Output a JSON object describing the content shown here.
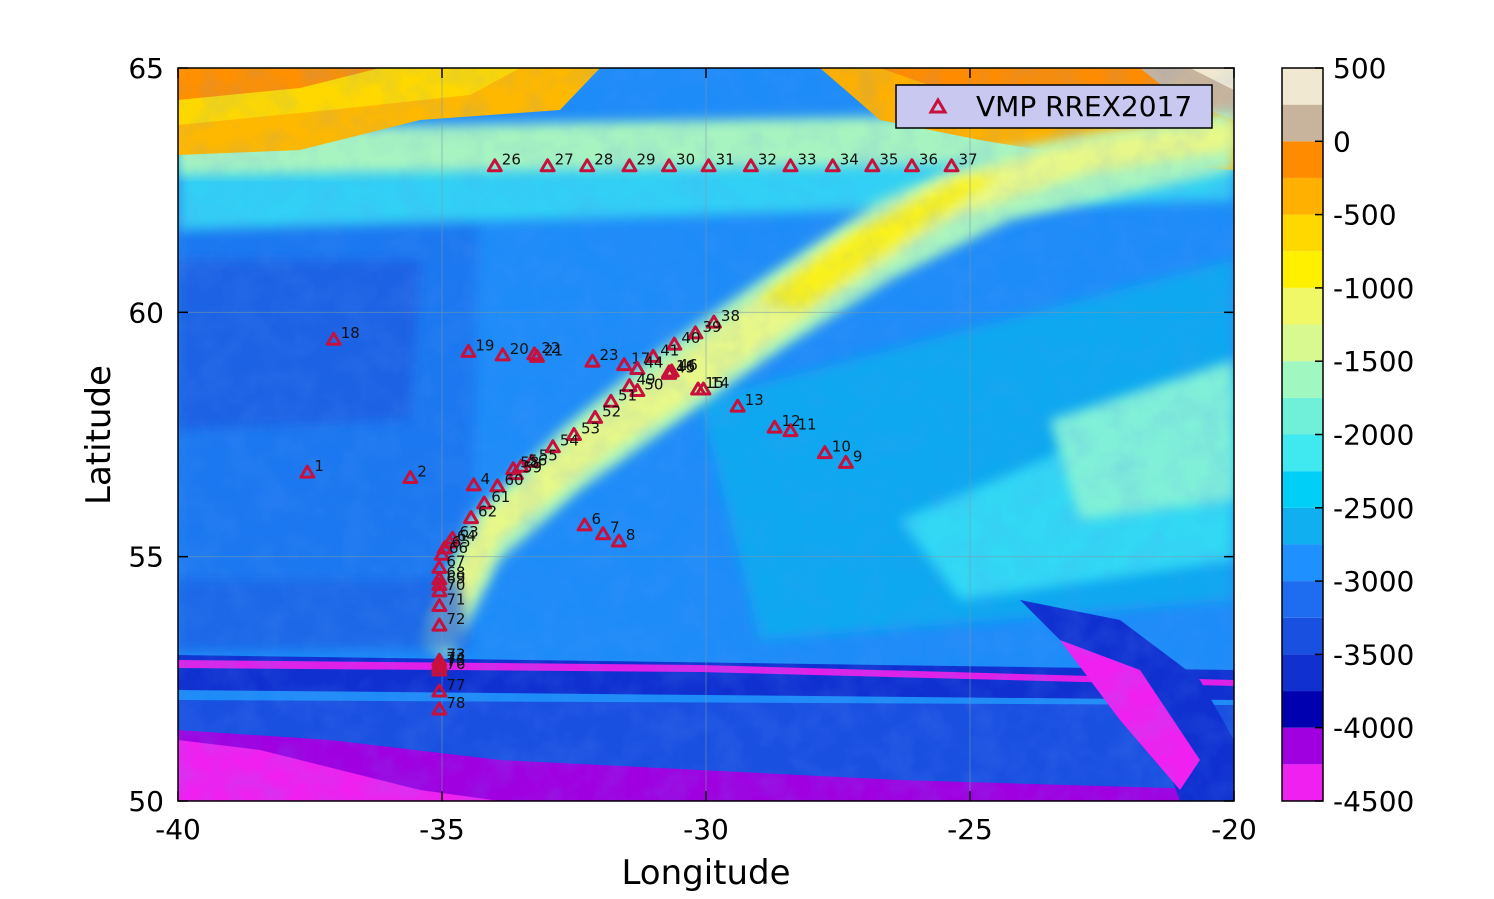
{
  "figure": {
    "xlabel": "Longitude",
    "ylabel": "Latitude",
    "xlim": [
      -40,
      -20
    ],
    "ylim": [
      50,
      65
    ],
    "x_ticks": [
      "-40",
      "-35",
      "-30",
      "-25",
      "-20"
    ],
    "y_ticks": [
      "50",
      "55",
      "60",
      "65"
    ],
    "grid": true,
    "legend": {
      "label": "VMP RREX2017",
      "placement": "top-right",
      "marker_color": "#c8103c"
    }
  },
  "colorbar": {
    "tick_labels": [
      "500",
      "0",
      "-500",
      "-1000",
      "-1500",
      "-2000",
      "-2500",
      "-3000",
      "-3500",
      "-4000",
      "-4500"
    ],
    "range": [
      -4500,
      500
    ],
    "bands": [
      {
        "from": -4500,
        "to": -4250,
        "color": "#f020f0"
      },
      {
        "from": -4250,
        "to": -4000,
        "color": "#a000e0"
      },
      {
        "from": -4000,
        "to": -3750,
        "color": "#0000b0"
      },
      {
        "from": -3750,
        "to": -3500,
        "color": "#1030d0"
      },
      {
        "from": -3500,
        "to": -3250,
        "color": "#1a50e0"
      },
      {
        "from": -3250,
        "to": -3000,
        "color": "#1e6cf0"
      },
      {
        "from": -3000,
        "to": -2750,
        "color": "#1e90ff"
      },
      {
        "from": -2750,
        "to": -2500,
        "color": "#10b0f0"
      },
      {
        "from": -2500,
        "to": -2250,
        "color": "#00d0f8"
      },
      {
        "from": -2250,
        "to": -2000,
        "color": "#40e8f0"
      },
      {
        "from": -2000,
        "to": -1750,
        "color": "#70f0d8"
      },
      {
        "from": -1750,
        "to": -1500,
        "color": "#a0f8c0"
      },
      {
        "from": -1500,
        "to": -1250,
        "color": "#d8f890"
      },
      {
        "from": -1250,
        "to": -1000,
        "color": "#f0f868"
      },
      {
        "from": -1000,
        "to": -750,
        "color": "#fff000"
      },
      {
        "from": -750,
        "to": -500,
        "color": "#ffd800"
      },
      {
        "from": -500,
        "to": -250,
        "color": "#ffb000"
      },
      {
        "from": -250,
        "to": 0,
        "color": "#ff8c00"
      },
      {
        "from": 0,
        "to": 250,
        "color": "#c8b49c"
      },
      {
        "from": 250,
        "to": 500,
        "color": "#f0e8d0"
      }
    ]
  },
  "chart_data": {
    "type": "scatter",
    "title": "",
    "xlabel": "Longitude",
    "ylabel": "Latitude",
    "xlim": [
      -40,
      -20
    ],
    "ylim": [
      50,
      65
    ],
    "series": [
      {
        "name": "VMP RREX2017",
        "marker": "triangle",
        "points": [
          {
            "id": "1",
            "lon": -37.55,
            "lat": 56.73
          },
          {
            "id": "2",
            "lon": -35.6,
            "lat": 56.62
          },
          {
            "id": "4",
            "lon": -34.4,
            "lat": 56.47
          },
          {
            "id": "6",
            "lon": -32.3,
            "lat": 55.65
          },
          {
            "id": "7",
            "lon": -31.95,
            "lat": 55.47
          },
          {
            "id": "8",
            "lon": -31.65,
            "lat": 55.32
          },
          {
            "id": "9",
            "lon": -27.35,
            "lat": 56.93
          },
          {
            "id": "10",
            "lon": -27.75,
            "lat": 57.13
          },
          {
            "id": "11",
            "lon": -28.4,
            "lat": 57.58
          },
          {
            "id": "12",
            "lon": -28.7,
            "lat": 57.65
          },
          {
            "id": "13",
            "lon": -29.4,
            "lat": 58.08
          },
          {
            "id": "14",
            "lon": -30.05,
            "lat": 58.43
          },
          {
            "id": "15",
            "lon": -30.15,
            "lat": 58.43
          },
          {
            "id": "16",
            "lon": -30.7,
            "lat": 58.78
          },
          {
            "id": "17",
            "lon": -31.55,
            "lat": 58.93
          },
          {
            "id": "18",
            "lon": -37.05,
            "lat": 59.45
          },
          {
            "id": "19",
            "lon": -34.5,
            "lat": 59.2
          },
          {
            "id": "20",
            "lon": -33.85,
            "lat": 59.13
          },
          {
            "id": "21",
            "lon": -33.2,
            "lat": 59.1
          },
          {
            "id": "22",
            "lon": -33.25,
            "lat": 59.15
          },
          {
            "id": "23",
            "lon": -32.15,
            "lat": 59.0
          },
          {
            "id": "26",
            "lon": -34.0,
            "lat": 63.0
          },
          {
            "id": "27",
            "lon": -33.0,
            "lat": 63.0
          },
          {
            "id": "28",
            "lon": -32.25,
            "lat": 63.0
          },
          {
            "id": "29",
            "lon": -31.45,
            "lat": 63.0
          },
          {
            "id": "30",
            "lon": -30.7,
            "lat": 63.0
          },
          {
            "id": "31",
            "lon": -29.95,
            "lat": 63.0
          },
          {
            "id": "32",
            "lon": -29.15,
            "lat": 63.0
          },
          {
            "id": "33",
            "lon": -28.4,
            "lat": 63.0
          },
          {
            "id": "34",
            "lon": -27.6,
            "lat": 63.0
          },
          {
            "id": "35",
            "lon": -26.85,
            "lat": 63.0
          },
          {
            "id": "36",
            "lon": -26.1,
            "lat": 63.0
          },
          {
            "id": "37",
            "lon": -25.35,
            "lat": 63.0
          },
          {
            "id": "38",
            "lon": -29.85,
            "lat": 59.8
          },
          {
            "id": "39",
            "lon": -30.2,
            "lat": 59.58
          },
          {
            "id": "40",
            "lon": -30.6,
            "lat": 59.35
          },
          {
            "id": "41",
            "lon": -31.0,
            "lat": 59.1
          },
          {
            "id": "44",
            "lon": -31.3,
            "lat": 58.85
          },
          {
            "id": "45",
            "lon": -30.7,
            "lat": 58.75
          },
          {
            "id": "46",
            "lon": -30.65,
            "lat": 58.8
          },
          {
            "id": "49",
            "lon": -31.45,
            "lat": 58.5
          },
          {
            "id": "50",
            "lon": -31.3,
            "lat": 58.4
          },
          {
            "id": "51",
            "lon": -31.8,
            "lat": 58.18
          },
          {
            "id": "52",
            "lon": -32.1,
            "lat": 57.85
          },
          {
            "id": "53",
            "lon": -32.5,
            "lat": 57.5
          },
          {
            "id": "54",
            "lon": -32.9,
            "lat": 57.25
          },
          {
            "id": "55",
            "lon": -33.3,
            "lat": 56.95
          },
          {
            "id": "56",
            "lon": -33.5,
            "lat": 56.85
          },
          {
            "id": "58",
            "lon": -33.65,
            "lat": 56.8
          },
          {
            "id": "59",
            "lon": -33.6,
            "lat": 56.7
          },
          {
            "id": "60",
            "lon": -33.95,
            "lat": 56.45
          },
          {
            "id": "61",
            "lon": -34.2,
            "lat": 56.1
          },
          {
            "id": "62",
            "lon": -34.45,
            "lat": 55.8
          },
          {
            "id": "63",
            "lon": -34.8,
            "lat": 55.38
          },
          {
            "id": "64",
            "lon": -34.85,
            "lat": 55.3
          },
          {
            "id": "65",
            "lon": -34.95,
            "lat": 55.18
          },
          {
            "id": "66",
            "lon": -35.0,
            "lat": 55.05
          },
          {
            "id": "67",
            "lon": -35.05,
            "lat": 54.78
          },
          {
            "id": "68",
            "lon": -35.05,
            "lat": 54.55
          },
          {
            "id": "69",
            "lon": -35.05,
            "lat": 54.43
          },
          {
            "id": "70",
            "lon": -35.05,
            "lat": 54.3
          },
          {
            "id": "71",
            "lon": -35.05,
            "lat": 54.0
          },
          {
            "id": "72",
            "lon": -35.05,
            "lat": 53.6
          },
          {
            "id": "73",
            "lon": -35.05,
            "lat": 52.88
          },
          {
            "id": "74",
            "lon": -35.05,
            "lat": 52.8
          },
          {
            "id": "75",
            "lon": -35.05,
            "lat": 52.75
          },
          {
            "id": "76",
            "lon": -35.05,
            "lat": 52.68
          },
          {
            "id": "77",
            "lon": -35.05,
            "lat": 52.25
          },
          {
            "id": "78",
            "lon": -35.05,
            "lat": 51.88
          }
        ]
      }
    ]
  }
}
